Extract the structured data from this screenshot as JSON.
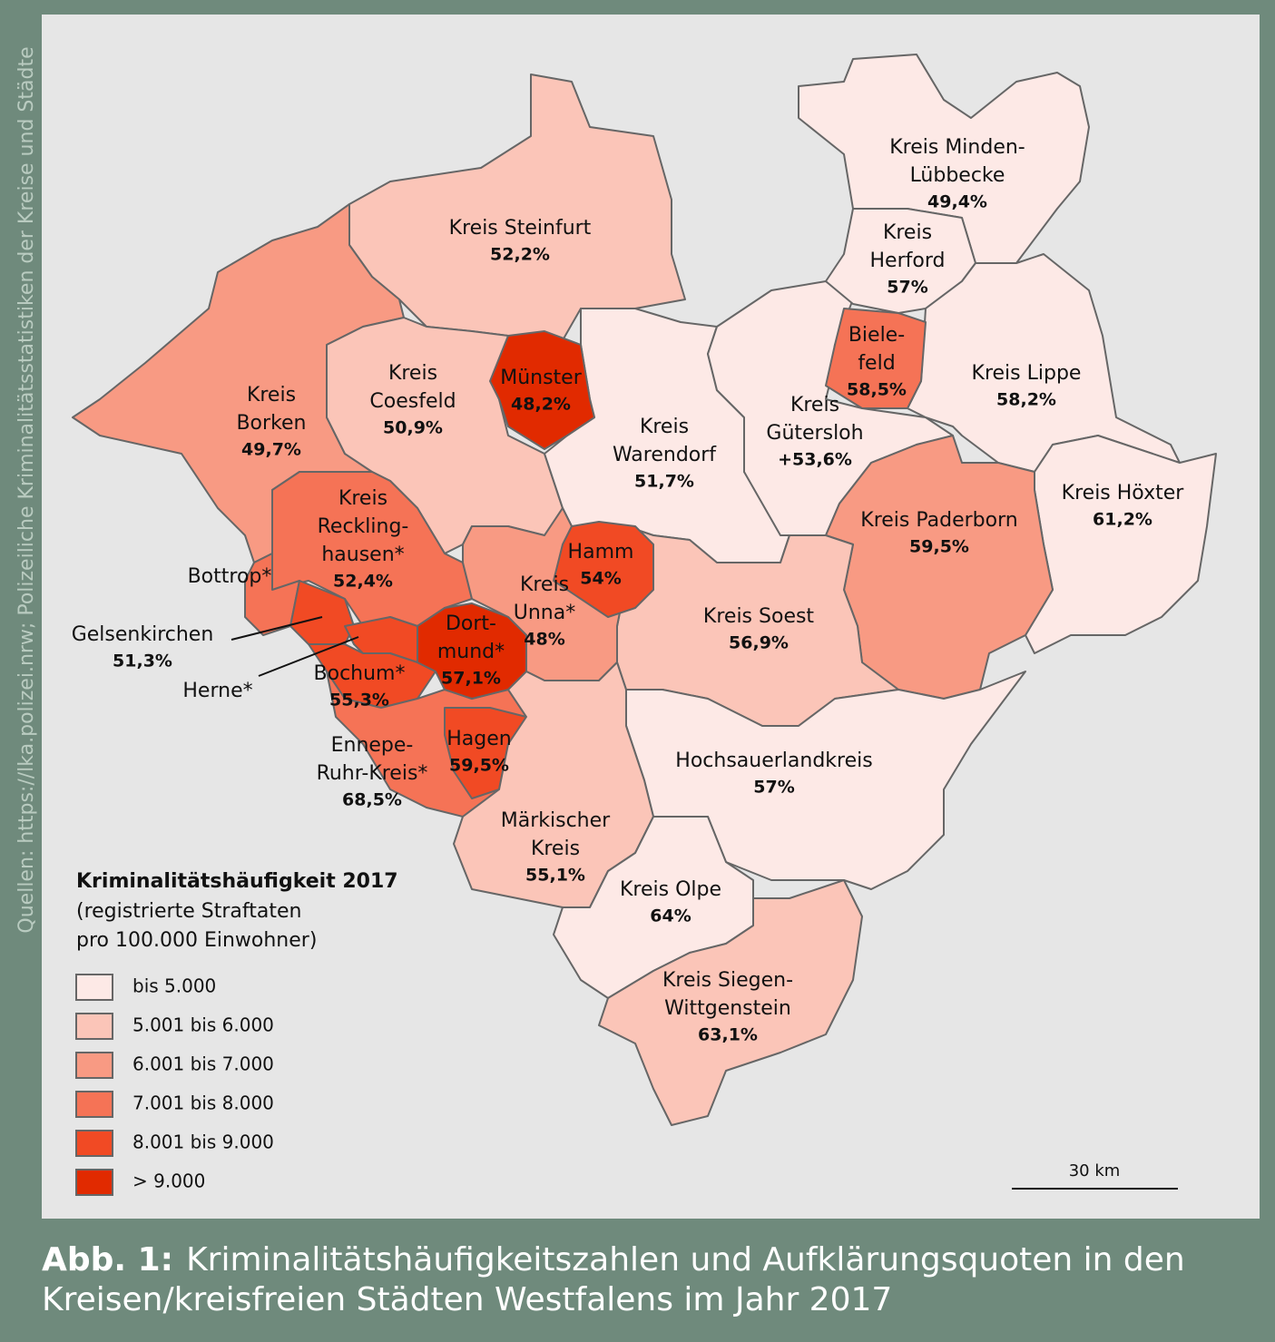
{
  "side_note": "Quellen: https://lka.polizei.nrw; Polizeiliche Kriminalitätsstatistiken der Kreise und Städte",
  "legend": {
    "title": "Kriminalitätshäufigkeit 2017",
    "subtitle_lines": [
      "(registrierte Straftaten",
      "pro 100.000 Einwohner)"
    ],
    "items": [
      {
        "label": "bis 5.000",
        "color": "#fde9e6"
      },
      {
        "label": "5.001 bis 6.000",
        "color": "#fbc5b8"
      },
      {
        "label": "6.001 bis 7.000",
        "color": "#f89a83"
      },
      {
        "label": "7.001 bis 8.000",
        "color": "#f57356"
      },
      {
        "label": "8.001 bis 9.000",
        "color": "#f14a24"
      },
      {
        "label": "> 9.000",
        "color": "#e12a00"
      }
    ]
  },
  "regions": [
    {
      "lines": [
        "Kreis Steinfurt"
      ],
      "percent": "52,2%"
    },
    {
      "lines": [
        "Kreis Minden-",
        "Lübbecke"
      ],
      "percent": "49,4%"
    },
    {
      "lines": [
        "Kreis",
        "Herford"
      ],
      "percent": "57%"
    },
    {
      "lines": [
        "Biele-",
        "feld"
      ],
      "percent": "58,5%"
    },
    {
      "lines": [
        "Kreis Lippe"
      ],
      "percent": "58,2%"
    },
    {
      "lines": [
        "Münster"
      ],
      "percent": "48,2%"
    },
    {
      "lines": [
        "Kreis",
        "Coesfeld"
      ],
      "percent": "50,9%"
    },
    {
      "lines": [
        "Kreis",
        "Borken"
      ],
      "percent": "49,7%"
    },
    {
      "lines": [
        "Kreis",
        "Warendorf"
      ],
      "percent": "51,7%"
    },
    {
      "lines": [
        "Kreis",
        "Gütersloh"
      ],
      "percent": "+53,6%"
    },
    {
      "lines": [
        "Kreis Höxter"
      ],
      "percent": "61,2%"
    },
    {
      "lines": [
        "Kreis Paderborn"
      ],
      "percent": "59,5%"
    },
    {
      "lines": [
        "Kreis",
        "Reckling-",
        "hausen*"
      ],
      "percent": "52,4%"
    },
    {
      "lines": [
        "Bottrop*"
      ]
    },
    {
      "lines": [
        "Hamm"
      ],
      "percent": "54%"
    },
    {
      "lines": [
        "Kreis",
        "Unna*"
      ],
      "percent": "48%"
    },
    {
      "lines": [
        "Kreis Soest"
      ],
      "percent": "56,9%"
    },
    {
      "lines": [
        "Gelsenkirchen"
      ],
      "percent": "51,3%"
    },
    {
      "lines": [
        "Dort-",
        "mund*"
      ],
      "percent": "57,1%"
    },
    {
      "lines": [
        "Bochum*"
      ],
      "percent": "55,3%"
    },
    {
      "lines": [
        "Herne*"
      ]
    },
    {
      "lines": [
        "Hochsauerlandkreis"
      ],
      "percent": "57%"
    },
    {
      "lines": [
        "Ennepe-",
        "Ruhr-Kreis*"
      ],
      "percent": "68,5%"
    },
    {
      "lines": [
        "Hagen"
      ],
      "percent": "59,5%"
    },
    {
      "lines": [
        "Märkischer",
        "Kreis"
      ],
      "percent": "55,1%"
    },
    {
      "lines": [
        "Kreis Olpe"
      ],
      "percent": "64%"
    },
    {
      "lines": [
        "Kreis Siegen-",
        "Wittgenstein"
      ],
      "percent": "63,1%"
    }
  ],
  "scale": "30 km",
  "caption": {
    "label": "Abb. 1:",
    "lines": [
      "Kriminalitätshäufigkeitszahlen und Aufklärungsquoten in den",
      "Kreisen/kreisfreien Städten Westfalens im Jahr 2017"
    ]
  }
}
